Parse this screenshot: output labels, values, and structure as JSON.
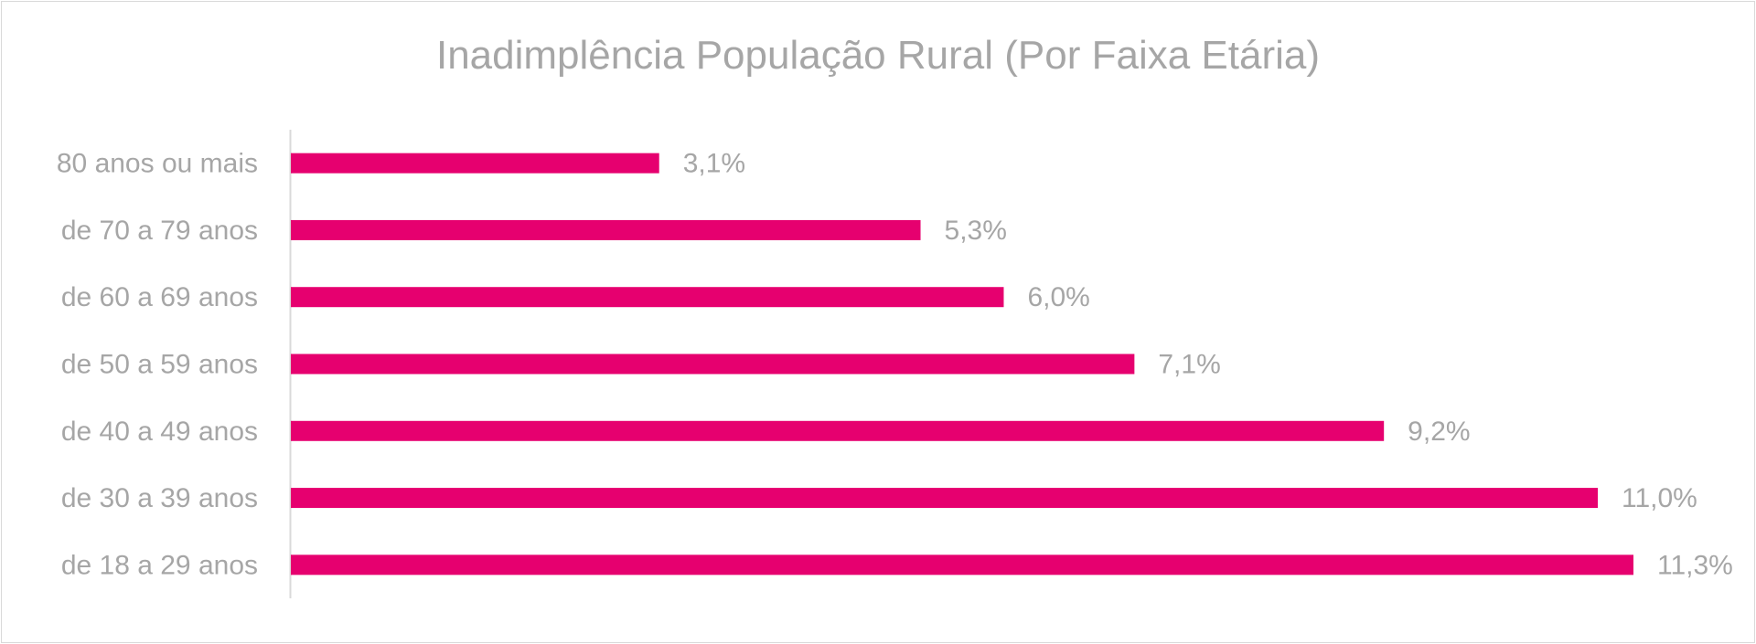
{
  "chart_data": {
    "type": "bar",
    "orientation": "horizontal",
    "title": "Inadimplência População Rural (Por Faixa Etária)",
    "xlabel": "",
    "ylabel": "",
    "categories": [
      "80 anos ou mais",
      "de 70 a 79 anos",
      "de 60 a 69 anos",
      "de 50 a 59 anos",
      "de 40 a 49 anos",
      "de 30 a 39 anos",
      "de 18 a 29 anos"
    ],
    "values": [
      3.1,
      5.3,
      6.0,
      7.1,
      9.2,
      11.0,
      11.3
    ],
    "value_labels": [
      "3,1%",
      "5,3%",
      "6,0%",
      "7,1%",
      "9,2%",
      "11,0%",
      "11,3%"
    ],
    "xlim": [
      0,
      11.3
    ],
    "grid": false,
    "legend": "none",
    "colors": {
      "bar": "#e6006f",
      "text": "#a6a6a6",
      "axis": "#d9d9d9"
    }
  }
}
